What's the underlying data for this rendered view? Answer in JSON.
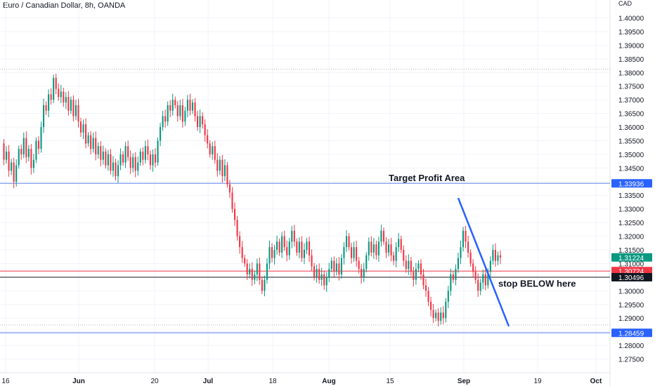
{
  "chart_data": {
    "type": "candlestick",
    "title": "Euro / Canadian Dollar, 8h, OANDA",
    "currency": "CAD",
    "y_axis": {
      "ylim": [
        1.27,
        1.4045
      ],
      "ticks": [
        "1.40000",
        "1.39500",
        "1.39000",
        "1.38500",
        "1.38000",
        "1.37500",
        "1.37000",
        "1.36500",
        "1.36000",
        "1.35500",
        "1.35000",
        "1.34500",
        "1.34000",
        "1.33500",
        "1.33000",
        "1.32500",
        "1.32000",
        "1.31500",
        "1.31000",
        "1.30500",
        "1.30000",
        "1.29500",
        "1.29000",
        "1.28500",
        "1.28000",
        "1.27500"
      ],
      "side": "right"
    },
    "x_axis": {
      "labels": [
        "16",
        "Jun",
        "20",
        "Jul",
        "18",
        "Aug",
        "15",
        "Sep",
        "19",
        "Oct"
      ],
      "bold_labels": [
        "Jun",
        "Jul",
        "Aug",
        "Sep",
        "Oct"
      ]
    },
    "grid": true,
    "colors": {
      "up": "#089981",
      "down": "#f23645",
      "blue_line": "#2962ff",
      "light_blue_level": "#90a8f0",
      "red_level": "#f23645",
      "black_level": "#131722",
      "grid": "#f0f3fa",
      "dotted": "#b2b5be"
    },
    "horizontal_levels": [
      {
        "value": 1.33936,
        "label": "1.33936",
        "style": "light-blue",
        "tag_color": "#2962ff"
      },
      {
        "value": 1.30724,
        "label": "1.30724",
        "style": "red",
        "tag_color": "#f23645"
      },
      {
        "value": 1.30496,
        "label": "1.30496",
        "style": "black",
        "tag_color": "#131722"
      },
      {
        "value": 1.28459,
        "label": "1.28459",
        "style": "light-blue",
        "tag_color": "#2962ff"
      }
    ],
    "dotted_levels": [
      1.3812,
      1.2875
    ],
    "last_price": {
      "value": 1.31224,
      "label": "1.31224",
      "tag_color": "#089981"
    },
    "annotations": [
      {
        "text": "Target Profit Area",
        "price": 1.3413
      },
      {
        "text": "stop BELOW here",
        "price": 1.3025
      }
    ],
    "trendline": {
      "from_price": 1.334,
      "to_price": 1.287
    },
    "series_ohlc_path": [
      1.354,
      1.348,
      1.351,
      1.344,
      1.347,
      1.34,
      1.346,
      1.352,
      1.35,
      1.356,
      1.349,
      1.352,
      1.345,
      1.348,
      1.355,
      1.352,
      1.36,
      1.368,
      1.366,
      1.372,
      1.37,
      1.378,
      1.374,
      1.371,
      1.373,
      1.369,
      1.371,
      1.366,
      1.37,
      1.364,
      1.368,
      1.362,
      1.358,
      1.361,
      1.354,
      1.357,
      1.352,
      1.356,
      1.35,
      1.353,
      1.348,
      1.351,
      1.346,
      1.35,
      1.344,
      1.347,
      1.342,
      1.346,
      1.35,
      1.347,
      1.353,
      1.349,
      1.345,
      1.349,
      1.344,
      1.347,
      1.351,
      1.348,
      1.353,
      1.35,
      1.346,
      1.35,
      1.347,
      1.355,
      1.36,
      1.364,
      1.362,
      1.368,
      1.366,
      1.37,
      1.368,
      1.364,
      1.368,
      1.362,
      1.366,
      1.37,
      1.366,
      1.369,
      1.364,
      1.36,
      1.364,
      1.361,
      1.357,
      1.354,
      1.35,
      1.353,
      1.348,
      1.344,
      1.348,
      1.342,
      1.346,
      1.339,
      1.336,
      1.33,
      1.326,
      1.32,
      1.316,
      1.312,
      1.31,
      1.306,
      1.308,
      1.304,
      1.306,
      1.31,
      1.304,
      1.3,
      1.304,
      1.31,
      1.316,
      1.312,
      1.315,
      1.318,
      1.314,
      1.32,
      1.316,
      1.313,
      1.318,
      1.322,
      1.318,
      1.314,
      1.318,
      1.312,
      1.315,
      1.318,
      1.313,
      1.309,
      1.305,
      1.308,
      1.304,
      1.306,
      1.302,
      1.305,
      1.308,
      1.311,
      1.307,
      1.31,
      1.306,
      1.312,
      1.316,
      1.32,
      1.316,
      1.312,
      1.316,
      1.311,
      1.308,
      1.305,
      1.308,
      1.313,
      1.318,
      1.314,
      1.317,
      1.313,
      1.318,
      1.322,
      1.318,
      1.314,
      1.317,
      1.313,
      1.311,
      1.316,
      1.319,
      1.315,
      1.311,
      1.308,
      1.311,
      1.307,
      1.304,
      1.308,
      1.31,
      1.306,
      1.302,
      1.3,
      1.296,
      1.293,
      1.29,
      1.292,
      1.289,
      1.292,
      1.29,
      1.296,
      1.3,
      1.306,
      1.304,
      1.308,
      1.312,
      1.316,
      1.322,
      1.318,
      1.314,
      1.31,
      1.307,
      1.304,
      1.3,
      1.303,
      1.306,
      1.302,
      1.307,
      1.311,
      1.315,
      1.311,
      1.313,
      1.3122
    ]
  }
}
